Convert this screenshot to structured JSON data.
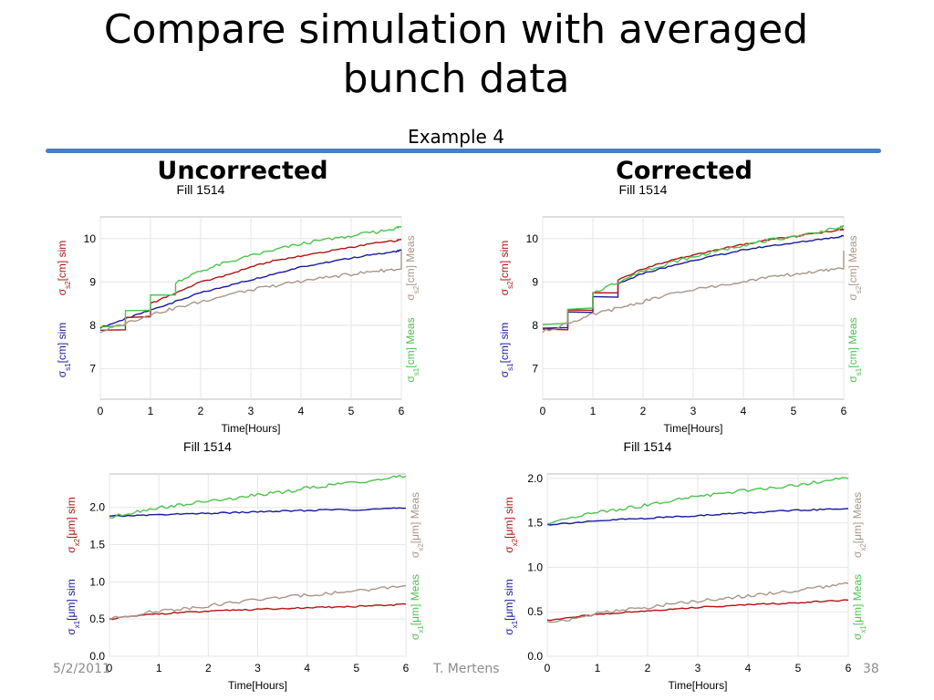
{
  "slide": {
    "title_line1": "Compare simulation with averaged",
    "title_line2": "bunch data",
    "subtitle": "Example 4",
    "left_heading": "Uncorrected",
    "right_heading": "Corrected",
    "footer_date": "5/2/2011",
    "footer_author": "T. Mertens",
    "footer_page": "38",
    "rule_color": "#4a7fc1"
  },
  "colors": {
    "sim1": "#1a1a9c",
    "sim2": "#b01515",
    "meas1": "#4ec24e",
    "meas2": "#a8968a"
  },
  "chart_data": [
    {
      "type": "line",
      "title": "Fill 1514",
      "xlabel": "Time[Hours]",
      "ylabel_left": [
        "σs1[cm] sim",
        "σs2[cm] sim"
      ],
      "ylabel_right": [
        "σs1[cm] Meas",
        "σs2[cm] Meas"
      ],
      "xlim": [
        0,
        6
      ],
      "ylim": [
        6.3,
        10.5
      ],
      "xticks": [
        0,
        1,
        2,
        3,
        4,
        5,
        6
      ],
      "yticks": [
        7,
        8,
        9,
        10
      ],
      "grid": true,
      "x": [
        0,
        0.5,
        1,
        1.5,
        2,
        2.5,
        3,
        3.5,
        4,
        4.5,
        5,
        5.5,
        5.9,
        6
      ],
      "series": [
        {
          "name": "σs1[cm] sim",
          "color_key": "sim1",
          "values": [
            7.95,
            8.15,
            8.35,
            8.55,
            8.75,
            8.9,
            9.05,
            9.2,
            9.35,
            9.45,
            9.55,
            9.65,
            9.7,
            9.75
          ]
        },
        {
          "name": "σs2[cm] sim",
          "color_key": "sim2",
          "values": [
            7.9,
            8.2,
            8.5,
            8.75,
            9.0,
            9.15,
            9.35,
            9.5,
            9.6,
            9.7,
            9.8,
            9.9,
            9.95,
            9.98
          ]
        },
        {
          "name": "σs1[cm] Meas",
          "color_key": "meas1",
          "values": [
            8.0,
            8.35,
            8.7,
            9.0,
            9.25,
            9.45,
            9.6,
            9.75,
            9.88,
            9.98,
            10.07,
            10.15,
            10.25,
            10.28
          ]
        },
        {
          "name": "σs2[cm] Meas",
          "color_key": "meas2",
          "values": [
            7.85,
            8.05,
            8.25,
            8.4,
            8.55,
            8.7,
            8.82,
            8.92,
            9.02,
            9.1,
            9.18,
            9.25,
            9.3,
            9.72
          ]
        }
      ]
    },
    {
      "type": "line",
      "title": "Fill 1514",
      "xlabel": "Time[Hours]",
      "ylabel_left": [
        "σs1[cm] sim",
        "σs2[cm] sim"
      ],
      "ylabel_right": [
        "σs1[cm] Meas",
        "σs2[cm] Meas"
      ],
      "xlim": [
        0,
        6
      ],
      "ylim": [
        6.3,
        10.5
      ],
      "xticks": [
        0,
        1,
        2,
        3,
        4,
        5,
        6
      ],
      "yticks": [
        7,
        8,
        9,
        10
      ],
      "grid": true,
      "x": [
        0,
        0.5,
        1,
        1.5,
        2,
        2.5,
        3,
        3.5,
        4,
        4.5,
        5,
        5.5,
        5.9,
        6
      ],
      "series": [
        {
          "name": "σs1[cm] sim",
          "color_key": "sim1",
          "values": [
            7.95,
            8.3,
            8.65,
            8.95,
            9.2,
            9.35,
            9.5,
            9.62,
            9.74,
            9.83,
            9.9,
            9.98,
            10.04,
            10.07
          ]
        },
        {
          "name": "σs2[cm] sim",
          "color_key": "sim2",
          "values": [
            7.9,
            8.35,
            8.75,
            9.05,
            9.3,
            9.48,
            9.62,
            9.75,
            9.87,
            9.97,
            10.05,
            10.13,
            10.2,
            10.22
          ]
        },
        {
          "name": "σs1[cm] Meas",
          "color_key": "meas1",
          "values": [
            8.05,
            8.4,
            8.75,
            9.0,
            9.25,
            9.43,
            9.58,
            9.72,
            9.85,
            9.96,
            10.05,
            10.15,
            10.24,
            10.28
          ]
        },
        {
          "name": "σs2[cm] Meas",
          "color_key": "meas2",
          "values": [
            7.85,
            8.05,
            8.25,
            8.4,
            8.55,
            8.7,
            8.82,
            8.92,
            9.02,
            9.1,
            9.18,
            9.25,
            9.3,
            9.72
          ]
        }
      ]
    },
    {
      "type": "line",
      "title": "Fill 1514",
      "xlabel": "Time[Hours]",
      "ylabel_left": [
        "σx1[μm] sim",
        "σx2[μm] sim"
      ],
      "ylabel_right": [
        "σx1[μm] Meas",
        "σx2[μm] Meas"
      ],
      "xlim": [
        0,
        6
      ],
      "ylim": [
        0,
        2.45
      ],
      "xticks": [
        0,
        1,
        2,
        3,
        4,
        5,
        6
      ],
      "yticks": [
        0.0,
        0.5,
        1.0,
        1.5,
        2.0
      ],
      "ytick_decimals": 1,
      "grid": true,
      "x": [
        0,
        0.5,
        1,
        1.5,
        2,
        2.5,
        3,
        3.5,
        4,
        4.5,
        5,
        5.5,
        6
      ],
      "series": [
        {
          "name": "σx1[μm] sim",
          "color_key": "sim1",
          "values": [
            1.88,
            1.89,
            1.9,
            1.91,
            1.92,
            1.93,
            1.94,
            1.95,
            1.96,
            1.97,
            1.97,
            1.98,
            1.99
          ]
        },
        {
          "name": "σx2[μm] sim",
          "color_key": "sim2",
          "values": [
            0.5,
            0.54,
            0.57,
            0.59,
            0.6,
            0.62,
            0.63,
            0.64,
            0.65,
            0.66,
            0.67,
            0.68,
            0.7
          ]
        },
        {
          "name": "σx1[μm] Meas",
          "color_key": "meas1",
          "values": [
            1.86,
            1.94,
            2.0,
            2.04,
            2.08,
            2.12,
            2.17,
            2.2,
            2.26,
            2.3,
            2.34,
            2.38,
            2.42
          ]
        },
        {
          "name": "σx2[μm] Meas",
          "color_key": "meas2",
          "values": [
            0.5,
            0.56,
            0.61,
            0.64,
            0.68,
            0.72,
            0.76,
            0.79,
            0.82,
            0.85,
            0.88,
            0.91,
            0.95
          ]
        }
      ]
    },
    {
      "type": "line",
      "title": "Fill 1514",
      "xlabel": "Time[Hours]",
      "ylabel_left": [
        "σx1[μm] sim",
        "σx2[μm] sim"
      ],
      "ylabel_right": [
        "σx1[μm] Meas",
        "σx2[μm] Meas"
      ],
      "xlim": [
        0,
        6
      ],
      "ylim": [
        0,
        2.05
      ],
      "xticks": [
        0,
        1,
        2,
        3,
        4,
        5,
        6
      ],
      "yticks": [
        0.0,
        0.5,
        1.0,
        1.5,
        2.0
      ],
      "ytick_decimals": 1,
      "grid": true,
      "x": [
        0,
        0.5,
        1,
        1.5,
        2,
        2.5,
        3,
        3.5,
        4,
        4.5,
        5,
        5.5,
        6
      ],
      "series": [
        {
          "name": "σx1[μm] sim",
          "color_key": "sim1",
          "values": [
            1.48,
            1.5,
            1.52,
            1.54,
            1.55,
            1.57,
            1.58,
            1.6,
            1.61,
            1.63,
            1.64,
            1.65,
            1.66
          ]
        },
        {
          "name": "σx2[μm] sim",
          "color_key": "sim2",
          "values": [
            0.4,
            0.44,
            0.47,
            0.49,
            0.51,
            0.53,
            0.55,
            0.56,
            0.58,
            0.59,
            0.6,
            0.62,
            0.63
          ]
        },
        {
          "name": "σx1[μm] Meas",
          "color_key": "meas1",
          "values": [
            1.48,
            1.55,
            1.62,
            1.66,
            1.7,
            1.75,
            1.8,
            1.83,
            1.87,
            1.9,
            1.93,
            1.97,
            2.0
          ]
        },
        {
          "name": "σx2[μm] Meas",
          "color_key": "meas2",
          "values": [
            0.38,
            0.42,
            0.48,
            0.52,
            0.55,
            0.59,
            0.62,
            0.65,
            0.68,
            0.71,
            0.74,
            0.78,
            0.82
          ]
        }
      ]
    }
  ]
}
